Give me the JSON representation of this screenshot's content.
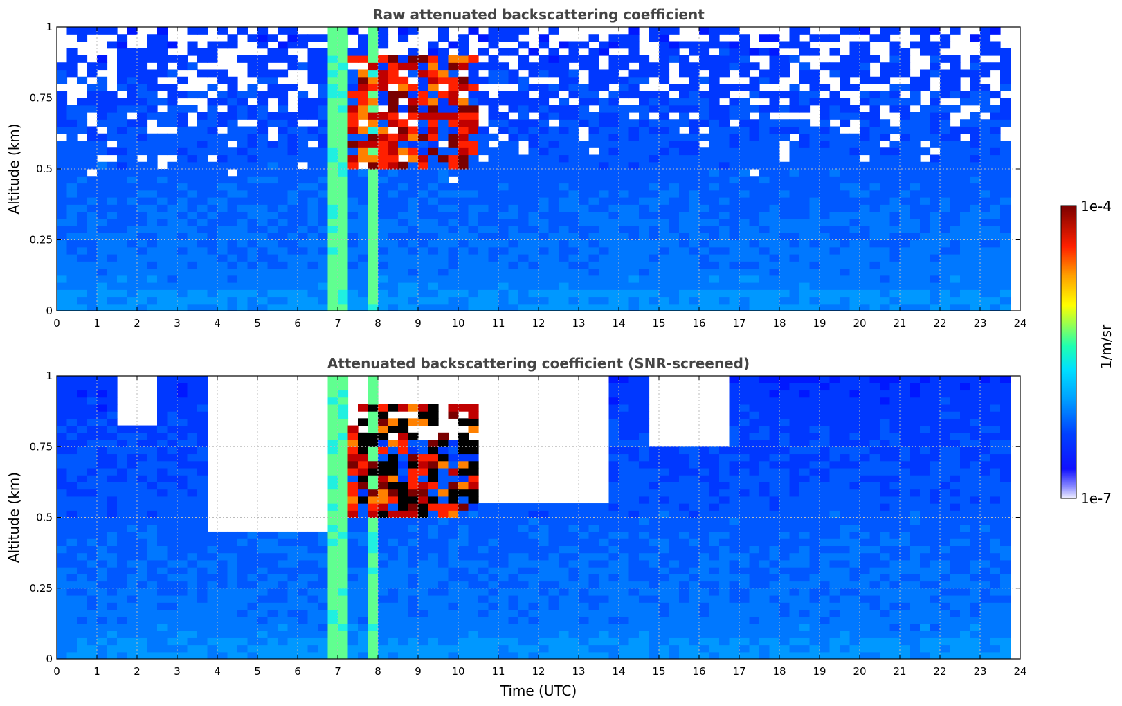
{
  "chart_data": [
    {
      "type": "heatmap",
      "title": "Raw attenuated backscattering coefficient",
      "xlabel": "",
      "ylabel": "Altitude (km)",
      "xlim": [
        0,
        24
      ],
      "ylim": [
        0,
        1
      ],
      "xticks": [
        "0",
        "1",
        "2",
        "3",
        "4",
        "5",
        "6",
        "7",
        "8",
        "9",
        "10",
        "11",
        "12",
        "13",
        "14",
        "15",
        "16",
        "17",
        "18",
        "19",
        "20",
        "21",
        "22",
        "23",
        "24"
      ],
      "yticks": [
        "0",
        "0.25",
        "0.5",
        "0.75",
        "1"
      ],
      "grid": true,
      "screened": false,
      "features": {
        "high_backscatter_bands_utc": [
          [
            6.75,
            7.25
          ],
          [
            7.85,
            8.05
          ]
        ],
        "cloud_layer": {
          "time_range": [
            7.3,
            10.4
          ],
          "altitude_range": [
            0.5,
            0.9
          ]
        },
        "surface_layer_top_km": 0.07
      }
    },
    {
      "type": "heatmap",
      "title": "Attenuated backscattering coefficient (SNR-screened)",
      "xlabel": "Time (UTC)",
      "ylabel": "Altitude (km)",
      "xlim": [
        0,
        24
      ],
      "ylim": [
        0,
        1
      ],
      "xticks": [
        "0",
        "1",
        "2",
        "3",
        "4",
        "5",
        "6",
        "7",
        "8",
        "9",
        "10",
        "11",
        "12",
        "13",
        "14",
        "15",
        "16",
        "17",
        "18",
        "19",
        "20",
        "21",
        "22",
        "23",
        "24"
      ],
      "yticks": [
        "0",
        "0.25",
        "0.5",
        "0.75",
        "1"
      ],
      "grid": true,
      "screened": true,
      "screened_regions_utc": [
        {
          "time_range": [
            1.6,
            2.6
          ],
          "min_altitude_km": 0.83
        },
        {
          "time_range": [
            3.8,
            6.7
          ],
          "min_altitude_km": 0.46
        },
        {
          "time_range": [
            7.3,
            10.6
          ],
          "min_altitude_km": 0.78
        },
        {
          "time_range": [
            10.6,
            13.7
          ],
          "min_altitude_km": 0.55
        },
        {
          "time_range": [
            14.8,
            16.8
          ],
          "min_altitude_km": 0.75
        }
      ]
    }
  ],
  "colorbar": {
    "label": "1/m/sr",
    "max_label": "1e-4",
    "min_label": "1e-7",
    "colormap": [
      "#e8e8ff",
      "#0000ff",
      "#00c8ff",
      "#00ffb0",
      "#ffff00",
      "#ff8000",
      "#ff0000",
      "#800000"
    ]
  }
}
